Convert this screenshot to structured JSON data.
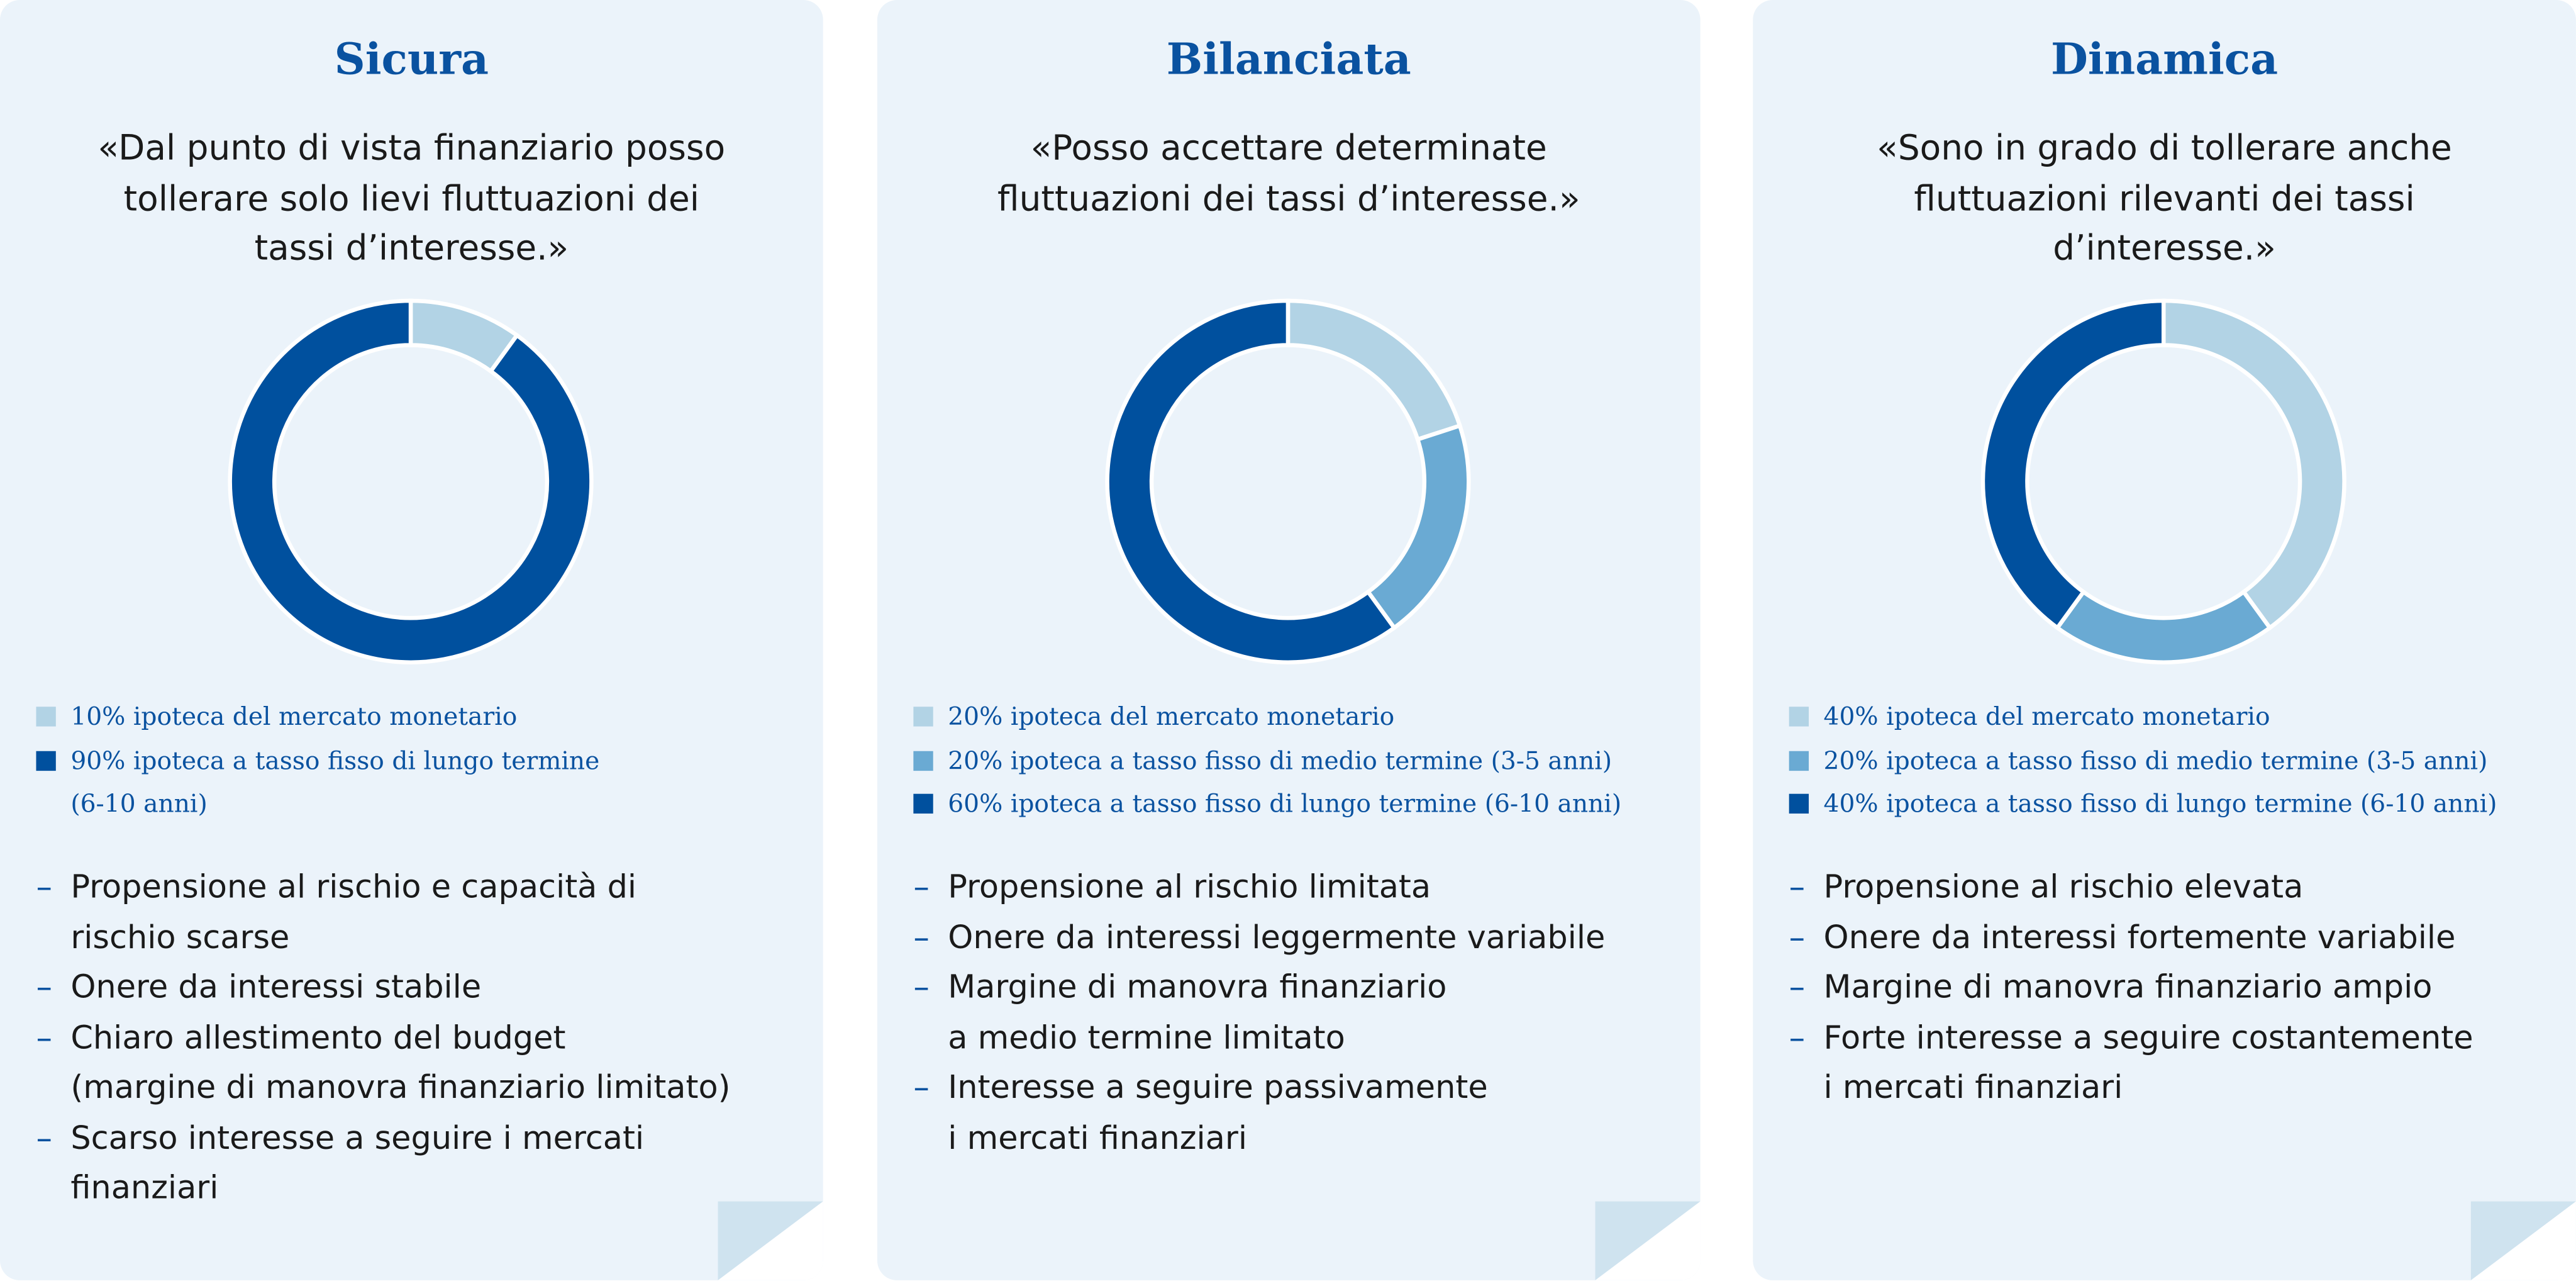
{
  "chart_data": [
    {
      "type": "pie",
      "title": "Sicura",
      "subtitle": "«Dal punto di vista finanziario posso\ntollerare solo lievi fluttuazioni dei\ntassi d’interesse.»",
      "categories": [
        "10% ipoteca del mercato monetario",
        "90% ipoteca a tasso fisso di lungo termine\n(6-10 anni)"
      ],
      "values": [
        10,
        90
      ],
      "colors": [
        "#b2d3e5",
        "#00509e"
      ],
      "annotations": [
        "Propensione al rischio e capacità di\nrischio scarse",
        "Onere da interessi stabile",
        "Chiaro allestimento del budget\n(margine di manovra finanziario limitato)",
        "Scarso interesse a seguire i mercati\nfinanziari"
      ]
    },
    {
      "type": "pie",
      "title": "Bilanciata",
      "subtitle": "«Posso accettare determinate\nfluttuazioni dei tassi d’interesse.»",
      "categories": [
        "20% ipoteca del mercato monetario",
        "20% ipoteca a tasso fisso di medio termine (3-5 anni)",
        "60% ipoteca a tasso fisso di lungo termine (6-10 anni)"
      ],
      "values": [
        20,
        20,
        60
      ],
      "colors": [
        "#b2d3e5",
        "#6aaad3",
        "#00509e"
      ],
      "annotations": [
        "Propensione al rischio limitata",
        "Onere da interessi leggermente variabile",
        "Margine di manovra finanziario\na medio termine limitato",
        "Interesse a seguire passivamente\ni mercati finanziari"
      ]
    },
    {
      "type": "pie",
      "title": "Dinamica",
      "subtitle": "«Sono in grado di tollerare anche\nfluttuazioni rilevanti dei tassi\nd’interesse.»",
      "categories": [
        "40% ipoteca del mercato monetario",
        "20% ipoteca a tasso fisso di medio termine (3-5 anni)",
        "40% ipoteca a tasso fisso di lungo termine (6-10 anni)"
      ],
      "values": [
        40,
        20,
        40
      ],
      "colors": [
        "#b2d3e5",
        "#6aaad3",
        "#00509e"
      ],
      "annotations": [
        "Propensione al rischio elevata",
        "Onere da interessi fortemente variabile",
        "Margine di manovra finanziario ampio",
        "Forte interesse a seguire costantemente\ni mercati finanziari"
      ]
    }
  ]
}
